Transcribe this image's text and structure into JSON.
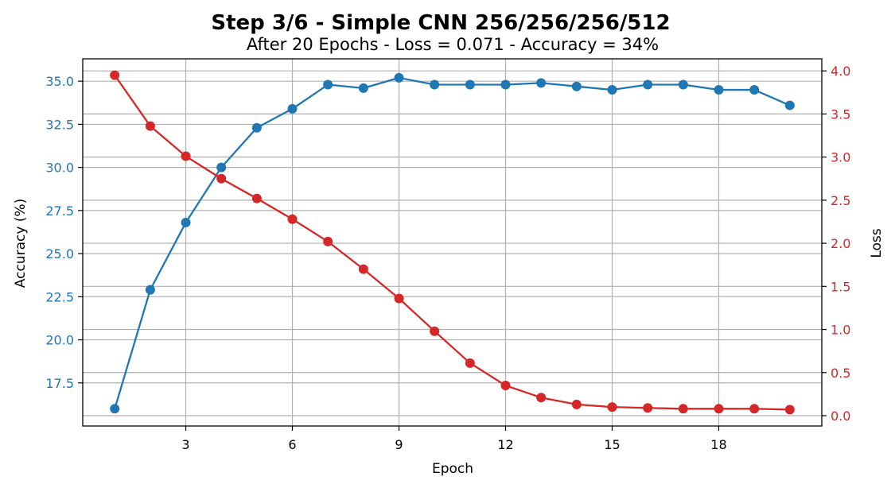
{
  "chart_data": {
    "type": "line",
    "title": "Step 3/6 - Simple CNN 256/256/256/512",
    "subtitle": "After 20 Epochs - Loss = 0.071 - Accuracy = 34%",
    "xlabel": "Epoch",
    "ylabel_left": "Accuracy (%)",
    "ylabel_right": "Loss",
    "x": [
      1,
      2,
      3,
      4,
      5,
      6,
      7,
      8,
      9,
      10,
      11,
      12,
      13,
      14,
      15,
      16,
      17,
      18,
      19,
      20
    ],
    "x_ticks": [
      "3",
      "6",
      "9",
      "12",
      "15",
      "18"
    ],
    "y_left_ticks": [
      "17.5",
      "20.0",
      "22.5",
      "25.0",
      "27.5",
      "30.0",
      "32.5",
      "35.0"
    ],
    "y_right_ticks": [
      "0.0",
      "0.5",
      "1.0",
      "1.5",
      "2.0",
      "2.5",
      "3.0",
      "3.5",
      "4.0"
    ],
    "xlim": [
      0.1,
      20.9
    ],
    "ylim_left": [
      15.0,
      36.3
    ],
    "ylim_right": [
      -0.12,
      4.14
    ],
    "grid": true,
    "series": [
      {
        "name": "Accuracy (%)",
        "axis": "left",
        "color": "#1f77b4",
        "values": [
          16.0,
          22.9,
          26.8,
          30.0,
          32.3,
          33.4,
          34.8,
          34.6,
          35.2,
          34.8,
          34.8,
          34.8,
          34.9,
          34.7,
          34.5,
          34.8,
          34.8,
          34.5,
          34.5,
          33.6
        ]
      },
      {
        "name": "Loss",
        "axis": "right",
        "color": "#d62728",
        "values": [
          3.95,
          3.36,
          3.01,
          2.75,
          2.52,
          2.28,
          2.02,
          1.7,
          1.36,
          0.98,
          0.61,
          0.35,
          0.21,
          0.13,
          0.1,
          0.09,
          0.08,
          0.08,
          0.08,
          0.07
        ]
      }
    ]
  }
}
